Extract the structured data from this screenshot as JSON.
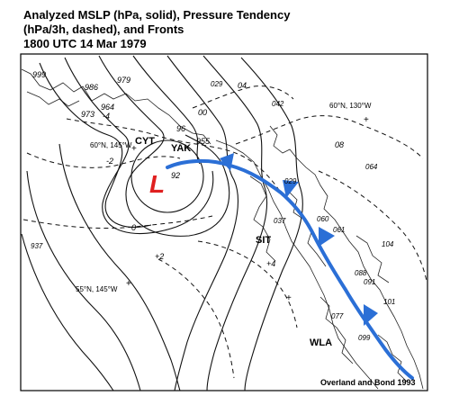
{
  "title": {
    "line1": "Analyzed MSLP (hPa, solid), Pressure Tendency",
    "line2": "(hPa/3h, dashed), and Fronts",
    "line3": "1800 UTC  14 Mar 1979"
  },
  "low": {
    "symbol": "L",
    "central_pressure": "92",
    "color": "#e02020"
  },
  "front_color": "#2b6fd6",
  "isobar_labels": {
    "p999": "999",
    "p986": "986",
    "p979": "979",
    "p973": "973",
    "p964": "964",
    "p96": "96",
    "p00": "00",
    "p04": "04",
    "p08": "08",
    "p955": "955"
  },
  "tendency_labels": {
    "m4": "-4",
    "m2": "-2",
    "zero": "0",
    "p2": "+2",
    "p4": "+4"
  },
  "stations": {
    "cyt": "CYT",
    "yak": "YAK",
    "sit": "SIT",
    "wla": "WLA"
  },
  "coords": {
    "c1": "60°N, 145°W",
    "c2": "60°N, 130°W",
    "c3": "55°N, 145°W"
  },
  "obs": {
    "o029a": "029",
    "o042": "042",
    "o064": "064",
    "o029b": "029",
    "o037": "037",
    "o060": "060",
    "o061": "061",
    "o937": "937",
    "o104": "104",
    "o088": "088",
    "o091": "091",
    "o101": "101",
    "o077": "077",
    "o099": "099"
  },
  "credit": "Overland and Bond 1993"
}
